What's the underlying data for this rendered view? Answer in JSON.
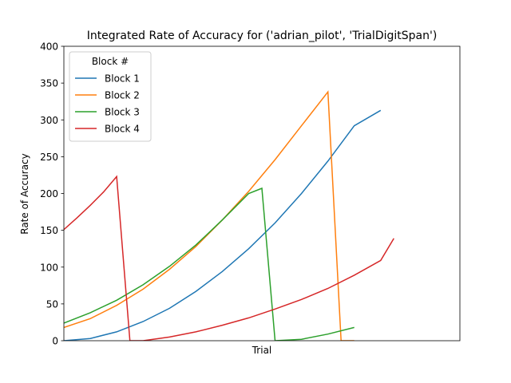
{
  "chart_data": {
    "type": "line",
    "title": "Integrated Rate of Accuracy for ('adrian_pilot', 'TrialDigitSpan')",
    "xlabel": "Trial",
    "ylabel": "Rate of Accuracy",
    "xlim": [
      0,
      30
    ],
    "ylim": [
      0,
      400
    ],
    "yticks": [
      0,
      50,
      100,
      150,
      200,
      250,
      300,
      350,
      400
    ],
    "ytick_labels": [
      "0",
      "50",
      "100",
      "150",
      "200",
      "250",
      "300",
      "350",
      "400"
    ],
    "xticks_visible": false,
    "grid": false,
    "legend": {
      "title": "Block #",
      "position": "upper-left"
    },
    "series": [
      {
        "name": "Block 1",
        "color": "#1f77b4",
        "x": [
          0,
          2,
          4,
          6,
          8,
          10,
          12,
          14,
          16,
          18,
          20,
          22,
          24
        ],
        "y": [
          0,
          3,
          12,
          26,
          44,
          67,
          94,
          125,
          160,
          200,
          244,
          292,
          313
        ]
      },
      {
        "name": "Block 2",
        "color": "#ff7f0e",
        "x": [
          0,
          2,
          4,
          6,
          8,
          10,
          12,
          14,
          16,
          18,
          20,
          21,
          22
        ],
        "y": [
          18,
          30,
          48,
          70,
          97,
          128,
          164,
          203,
          246,
          292,
          338,
          0,
          0
        ]
      },
      {
        "name": "Block 3",
        "color": "#2ca02c",
        "x": [
          0,
          2,
          4,
          6,
          8,
          10,
          12,
          14,
          15,
          16,
          18,
          20,
          22
        ],
        "y": [
          24,
          38,
          55,
          76,
          101,
          130,
          164,
          200,
          207,
          0,
          2,
          9,
          18
        ]
      },
      {
        "name": "Block 4",
        "color": "#d62728",
        "x": [
          0,
          1,
          2,
          3,
          4,
          5,
          6,
          8,
          10,
          12,
          14,
          16,
          18,
          20,
          22,
          24,
          25
        ],
        "y": [
          151,
          167,
          184,
          202,
          223,
          0,
          0,
          5,
          12,
          21,
          31,
          43,
          56,
          71,
          89,
          109,
          139
        ]
      }
    ]
  }
}
